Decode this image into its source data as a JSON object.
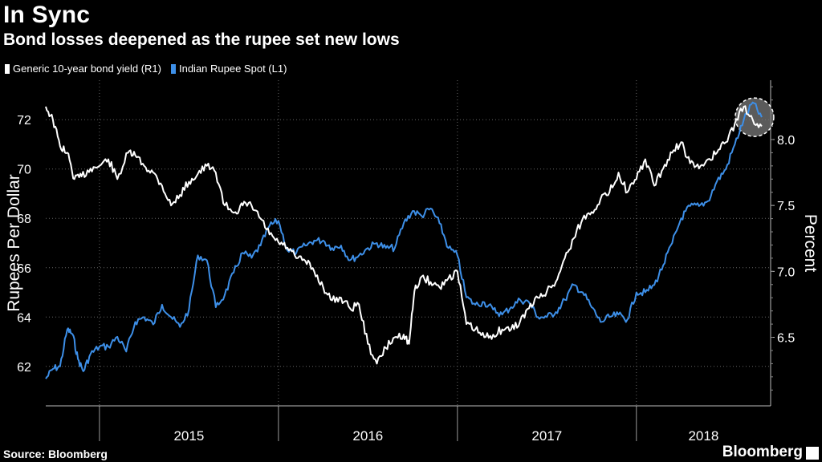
{
  "header": {
    "title": "In Sync",
    "subtitle": "Bond losses deepened as the rupee set new lows"
  },
  "footer": {
    "source": "Source: Bloomberg",
    "brand": "Bloomberg"
  },
  "colors": {
    "background": "#000000",
    "bond_series": "#ffffff",
    "rupee_series": "#3d8fe8",
    "grid": "#666666",
    "highlight": "#7a7a7a"
  },
  "chart_data": {
    "type": "line",
    "legend": [
      {
        "name": "Generic 10-year bond yield (R1)",
        "color": "#ffffff"
      },
      {
        "name": "Indian Rupee Spot  (L1)",
        "color": "#3d8fe8"
      }
    ],
    "left_axis": {
      "label": "Rupees Per Dollar",
      "ticks": [
        62,
        64,
        66,
        68,
        70,
        72
      ],
      "range": [
        60.4,
        73.6
      ]
    },
    "right_axis": {
      "label": "Percent",
      "ticks": [
        "6.5",
        "7.0",
        "7.5",
        "8.0"
      ],
      "range": [
        5.98,
        8.45
      ]
    },
    "x_axis": {
      "categories": [
        "2015",
        "2016",
        "2017",
        "2018"
      ],
      "range": [
        2014.7,
        2018.75
      ]
    },
    "grid": true,
    "annotation": "circle highlighting latest values",
    "series": [
      {
        "name": "Generic 10-year bond yield (R1)",
        "axis": "right",
        "x": [
          2014.7,
          2014.74,
          2014.78,
          2014.82,
          2014.86,
          2014.9,
          2014.95,
          2015.0,
          2015.05,
          2015.1,
          2015.16,
          2015.2,
          2015.25,
          2015.3,
          2015.35,
          2015.4,
          2015.45,
          2015.5,
          2015.55,
          2015.6,
          2015.65,
          2015.7,
          2015.76,
          2015.8,
          2015.85,
          2015.9,
          2015.95,
          2016.0,
          2016.05,
          2016.1,
          2016.15,
          2016.2,
          2016.25,
          2016.3,
          2016.35,
          2016.4,
          2016.45,
          2016.5,
          2016.55,
          2016.6,
          2016.65,
          2016.7,
          2016.73,
          2016.76,
          2016.8,
          2016.85,
          2016.9,
          2016.95,
          2017.0,
          2017.05,
          2017.1,
          2017.15,
          2017.2,
          2017.25,
          2017.3,
          2017.35,
          2017.4,
          2017.45,
          2017.5,
          2017.55,
          2017.6,
          2017.65,
          2017.7,
          2017.75,
          2017.8,
          2017.85,
          2017.9,
          2017.95,
          2018.0,
          2018.05,
          2018.1,
          2018.15,
          2018.2,
          2018.25,
          2018.3,
          2018.35,
          2018.4,
          2018.45,
          2018.5,
          2018.55,
          2018.6,
          2018.65,
          2018.7
        ],
        "values": [
          8.25,
          8.15,
          7.95,
          7.9,
          7.7,
          7.72,
          7.78,
          7.8,
          7.85,
          7.7,
          7.9,
          7.88,
          7.8,
          7.75,
          7.65,
          7.5,
          7.58,
          7.68,
          7.74,
          7.8,
          7.75,
          7.5,
          7.45,
          7.5,
          7.5,
          7.4,
          7.28,
          7.22,
          7.18,
          7.1,
          7.08,
          7.0,
          6.88,
          6.78,
          6.8,
          6.72,
          6.75,
          6.45,
          6.3,
          6.42,
          6.5,
          6.52,
          6.45,
          6.85,
          6.96,
          6.92,
          6.88,
          6.95,
          7.0,
          6.6,
          6.56,
          6.5,
          6.52,
          6.56,
          6.56,
          6.62,
          6.72,
          6.8,
          6.85,
          6.92,
          7.1,
          7.25,
          7.4,
          7.45,
          7.55,
          7.6,
          7.75,
          7.6,
          7.7,
          7.85,
          7.65,
          7.78,
          7.9,
          7.98,
          7.82,
          7.78,
          7.85,
          7.9,
          7.98,
          8.12,
          8.25,
          8.15,
          8.1
        ]
      },
      {
        "name": "Indian Rupee Spot  (L1)",
        "axis": "left",
        "x": [
          2014.7,
          2014.74,
          2014.78,
          2014.82,
          2014.85,
          2014.88,
          2014.91,
          2014.95,
          2015.0,
          2015.05,
          2015.1,
          2015.15,
          2015.2,
          2015.25,
          2015.3,
          2015.35,
          2015.4,
          2015.45,
          2015.5,
          2015.55,
          2015.6,
          2015.65,
          2015.7,
          2015.75,
          2015.8,
          2015.85,
          2015.9,
          2015.95,
          2016.0,
          2016.05,
          2016.1,
          2016.15,
          2016.2,
          2016.25,
          2016.3,
          2016.35,
          2016.4,
          2016.45,
          2016.5,
          2016.55,
          2016.6,
          2016.65,
          2016.7,
          2016.75,
          2016.8,
          2016.85,
          2016.9,
          2016.95,
          2017.0,
          2017.05,
          2017.1,
          2017.15,
          2017.2,
          2017.25,
          2017.3,
          2017.35,
          2017.4,
          2017.45,
          2017.5,
          2017.55,
          2017.6,
          2017.65,
          2017.7,
          2017.75,
          2017.8,
          2017.85,
          2017.9,
          2017.95,
          2018.0,
          2018.05,
          2018.1,
          2018.15,
          2018.2,
          2018.25,
          2018.3,
          2018.35,
          2018.4,
          2018.45,
          2018.5,
          2018.55,
          2018.6,
          2018.65,
          2018.7
        ],
        "values": [
          61.5,
          61.9,
          62.0,
          63.5,
          63.3,
          62.3,
          61.8,
          62.5,
          62.8,
          62.8,
          63.2,
          62.6,
          63.8,
          64.0,
          63.7,
          64.5,
          64.0,
          63.6,
          64.3,
          66.5,
          66.3,
          64.4,
          64.9,
          65.8,
          66.6,
          66.4,
          66.9,
          67.7,
          67.9,
          66.7,
          66.6,
          66.9,
          67.1,
          67.1,
          66.8,
          66.9,
          66.3,
          66.5,
          66.8,
          67.0,
          66.8,
          66.8,
          67.8,
          68.3,
          68.1,
          68.4,
          67.8,
          66.8,
          66.5,
          64.8,
          64.5,
          64.6,
          64.3,
          64.1,
          64.4,
          64.7,
          64.6,
          64.0,
          64.0,
          64.2,
          64.7,
          65.3,
          65.0,
          64.4,
          63.8,
          64.0,
          64.1,
          63.9,
          65.0,
          65.0,
          65.3,
          66.1,
          67.0,
          68.0,
          68.5,
          68.5,
          68.7,
          69.5,
          70.0,
          71.0,
          72.0,
          72.7,
          72.1
        ]
      }
    ]
  }
}
